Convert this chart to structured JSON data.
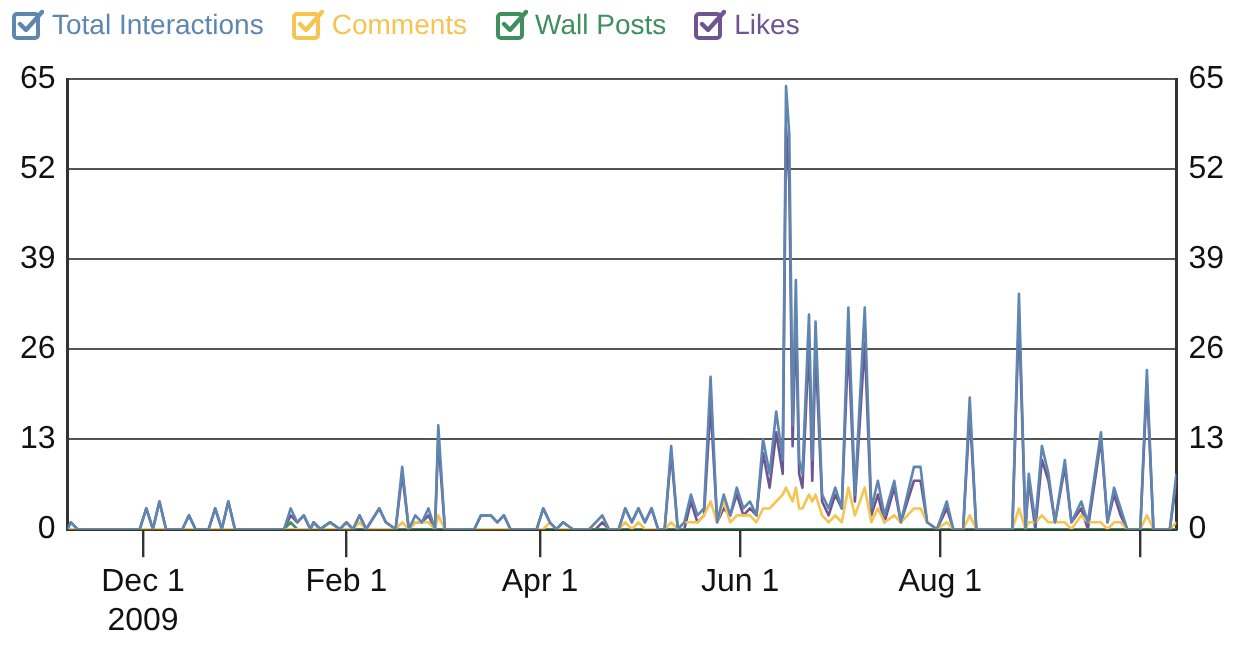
{
  "chart_data": {
    "type": "line",
    "x": [
      "2009-11-08",
      "2009-11-09",
      "2009-11-11",
      "2009-11-30",
      "2009-12-02",
      "2009-12-04",
      "2009-12-06",
      "2009-12-08",
      "2009-12-13",
      "2009-12-15",
      "2009-12-17",
      "2009-12-21",
      "2009-12-23",
      "2009-12-25",
      "2009-12-27",
      "2009-12-29",
      "2010-01-13",
      "2010-01-15",
      "2010-01-17",
      "2010-01-19",
      "2010-01-21",
      "2010-01-22",
      "2010-01-24",
      "2010-01-27",
      "2010-01-30",
      "2010-02-01",
      "2010-02-03",
      "2010-02-05",
      "2010-02-07",
      "2010-02-11",
      "2010-02-13",
      "2010-02-16",
      "2010-02-18",
      "2010-02-20",
      "2010-02-22",
      "2010-02-24",
      "2010-02-26",
      "2010-02-28",
      "2010-03-01",
      "2010-03-03",
      "2010-03-12",
      "2010-03-14",
      "2010-03-17",
      "2010-03-19",
      "2010-03-21",
      "2010-03-23",
      "2010-03-31",
      "2010-04-02",
      "2010-04-04",
      "2010-04-06",
      "2010-04-08",
      "2010-04-11",
      "2010-04-16",
      "2010-04-18",
      "2010-04-20",
      "2010-04-22",
      "2010-04-25",
      "2010-04-27",
      "2010-04-29",
      "2010-05-01",
      "2010-05-03",
      "2010-05-05",
      "2010-05-07",
      "2010-05-09",
      "2010-05-11",
      "2010-05-13",
      "2010-05-15",
      "2010-05-17",
      "2010-05-19",
      "2010-05-21",
      "2010-05-23",
      "2010-05-25",
      "2010-05-27",
      "2010-05-29",
      "2010-05-31",
      "2010-06-02",
      "2010-06-04",
      "2010-06-06",
      "2010-06-08",
      "2010-06-10",
      "2010-06-12",
      "2010-06-14",
      "2010-06-15",
      "2010-06-16",
      "2010-06-17",
      "2010-06-18",
      "2010-06-19",
      "2010-06-20",
      "2010-06-22",
      "2010-06-23",
      "2010-06-24",
      "2010-06-26",
      "2010-06-28",
      "2010-06-30",
      "2010-07-02",
      "2010-07-04",
      "2010-07-06",
      "2010-07-09",
      "2010-07-11",
      "2010-07-13",
      "2010-07-15",
      "2010-07-18",
      "2010-07-20",
      "2010-07-24",
      "2010-07-26",
      "2010-07-28",
      "2010-07-31",
      "2010-08-03",
      "2010-08-05",
      "2010-08-08",
      "2010-08-10",
      "2010-08-12",
      "2010-08-23",
      "2010-08-25",
      "2010-08-27",
      "2010-08-28",
      "2010-08-30",
      "2010-09-01",
      "2010-09-03",
      "2010-09-05",
      "2010-09-08",
      "2010-09-10",
      "2010-09-13",
      "2010-09-15",
      "2010-09-19",
      "2010-09-21",
      "2010-09-23",
      "2010-09-25",
      "2010-09-27",
      "2010-10-01",
      "2010-10-03",
      "2010-10-05",
      "2010-10-10",
      "2010-10-12"
    ],
    "series": [
      {
        "name": "Total Interactions",
        "color": "#5e86b0",
        "values": [
          0,
          1,
          0,
          0,
          3,
          0,
          4,
          0,
          0,
          2,
          0,
          0,
          3,
          0,
          4,
          0,
          0,
          3,
          1,
          2,
          0,
          1,
          0,
          1,
          0,
          1,
          0,
          2,
          0,
          3,
          1,
          0,
          9,
          0,
          2,
          1,
          3,
          0,
          15,
          0,
          0,
          2,
          2,
          1,
          2,
          0,
          0,
          3,
          1,
          0,
          1,
          0,
          0,
          1,
          2,
          0,
          0,
          3,
          1,
          3,
          1,
          3,
          0,
          0,
          12,
          0,
          1,
          5,
          2,
          3,
          22,
          1,
          5,
          2,
          6,
          3,
          4,
          2,
          13,
          8,
          17,
          10,
          64,
          57,
          15,
          36,
          10,
          8,
          31,
          10,
          30,
          5,
          3,
          6,
          3,
          32,
          5,
          32,
          3,
          7,
          2,
          7,
          1,
          9,
          9,
          1,
          0,
          4,
          0,
          0,
          19,
          0,
          0,
          34,
          0,
          8,
          1,
          12,
          8,
          1,
          10,
          1,
          4,
          1,
          14,
          1,
          6,
          3,
          0,
          0,
          23,
          0,
          0,
          8
        ]
      },
      {
        "name": "Comments",
        "color": "#f5c451",
        "values": [
          0,
          0,
          0,
          0,
          0,
          0,
          0,
          0,
          0,
          0,
          0,
          0,
          0,
          0,
          0,
          0,
          0,
          0,
          0,
          0,
          0,
          0,
          0,
          0,
          0,
          0,
          0,
          1,
          0,
          0,
          0,
          0,
          1,
          0,
          1,
          1,
          1,
          0,
          2,
          0,
          0,
          0,
          0,
          0,
          0,
          0,
          0,
          0,
          1,
          0,
          0,
          0,
          0,
          1,
          2,
          0,
          0,
          1,
          0,
          1,
          0,
          0,
          0,
          0,
          1,
          0,
          1,
          1,
          1,
          2,
          4,
          1,
          4,
          1,
          2,
          2,
          2,
          1,
          3,
          3,
          4,
          5,
          6,
          5,
          4,
          6,
          3,
          3,
          5,
          4,
          5,
          2,
          1,
          2,
          1,
          6,
          2,
          6,
          1,
          3,
          1,
          2,
          1,
          3,
          3,
          1,
          0,
          1,
          0,
          0,
          2,
          0,
          0,
          3,
          0,
          1,
          1,
          2,
          1,
          1,
          1,
          0,
          2,
          1,
          1,
          0,
          1,
          1,
          0,
          0,
          2,
          0,
          0,
          1
        ]
      },
      {
        "name": "Wall Posts",
        "color": "#3f8f5f",
        "values": [
          0,
          1,
          0,
          0,
          0,
          0,
          0,
          0,
          0,
          0,
          0,
          0,
          0,
          0,
          0,
          0,
          0,
          1,
          0,
          0,
          0,
          1,
          0,
          1,
          0,
          0,
          0,
          0,
          0,
          0,
          0,
          0,
          0,
          0,
          0,
          0,
          0,
          0,
          0,
          0,
          0,
          0,
          0,
          0,
          0,
          0,
          0,
          0,
          0,
          0,
          0,
          0,
          0,
          0,
          0,
          0,
          0,
          0,
          0,
          0,
          0,
          0,
          0,
          0,
          0,
          0,
          0,
          0,
          0,
          0,
          0,
          0,
          0,
          0,
          0,
          0,
          0,
          0,
          0,
          0,
          0,
          0,
          0,
          0,
          0,
          0,
          0,
          0,
          0,
          0,
          0,
          0,
          0,
          0,
          0,
          0,
          0,
          0,
          0,
          0,
          0,
          0,
          0,
          0,
          0,
          0,
          0,
          0,
          0,
          0,
          0,
          0,
          0,
          0,
          0,
          0,
          0,
          0,
          0,
          0,
          0,
          0,
          0,
          0,
          0,
          0,
          0,
          0,
          0,
          0,
          0,
          0,
          0,
          0
        ]
      },
      {
        "name": "Likes",
        "color": "#6e5590",
        "values": [
          0,
          0,
          0,
          0,
          3,
          0,
          4,
          0,
          0,
          2,
          0,
          0,
          3,
          0,
          4,
          0,
          0,
          2,
          1,
          2,
          0,
          1,
          0,
          1,
          0,
          1,
          0,
          2,
          0,
          3,
          1,
          0,
          8,
          0,
          1,
          1,
          2,
          0,
          13,
          0,
          0,
          2,
          2,
          1,
          2,
          0,
          0,
          3,
          1,
          0,
          1,
          0,
          0,
          0,
          1,
          0,
          0,
          3,
          1,
          3,
          1,
          3,
          0,
          0,
          11,
          0,
          0,
          4,
          1,
          2,
          18,
          1,
          3,
          2,
          5,
          2,
          3,
          2,
          11,
          6,
          14,
          8,
          58,
          50,
          12,
          31,
          8,
          6,
          27,
          7,
          26,
          4,
          2,
          5,
          3,
          27,
          4,
          27,
          2,
          5,
          1,
          6,
          1,
          7,
          7,
          1,
          0,
          3,
          0,
          0,
          17,
          0,
          0,
          31,
          0,
          7,
          0,
          10,
          7,
          1,
          9,
          1,
          3,
          0,
          13,
          1,
          5,
          2,
          0,
          0,
          21,
          0,
          0,
          7
        ]
      }
    ],
    "xlim": [
      "2009-11-08",
      "2010-10-12"
    ],
    "xticks": [
      {
        "value": "2009-12-01",
        "label": "Dec 1\n2009"
      },
      {
        "value": "2010-02-01",
        "label": "Feb 1"
      },
      {
        "value": "2010-04-01",
        "label": "Apr 1"
      },
      {
        "value": "2010-06-01",
        "label": "Jun 1"
      },
      {
        "value": "2010-08-01",
        "label": "Aug 1"
      },
      {
        "value": "2010-10-01",
        "label": null
      }
    ],
    "ylim": [
      0,
      65
    ],
    "yticks": [
      0,
      13,
      26,
      39,
      52,
      65
    ],
    "y2lim": [
      0,
      65
    ],
    "y2ticks": [
      0,
      13,
      26,
      39,
      52,
      65
    ],
    "grid": "y",
    "legend": "top left"
  }
}
